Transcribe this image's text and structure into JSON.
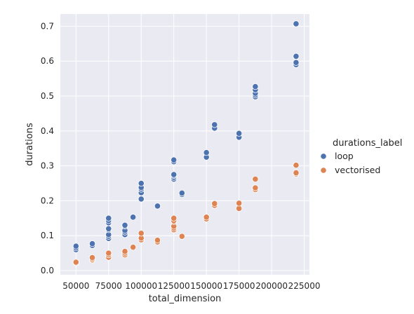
{
  "chart_data": {
    "type": "scatter",
    "xlabel": "total_dimension",
    "ylabel": "durations",
    "xlim": [
      38000,
      229000
    ],
    "ylim": [
      -0.012,
      0.735
    ],
    "xticks": [
      50000,
      75000,
      100000,
      125000,
      150000,
      175000,
      200000,
      225000
    ],
    "xtick_labels": [
      "50000",
      "75000",
      "100000",
      "125000",
      "150000",
      "175000",
      "200000",
      "225000"
    ],
    "yticks": [
      0.0,
      0.1,
      0.2,
      0.3,
      0.4,
      0.5,
      0.6,
      0.7
    ],
    "ytick_labels": [
      "0.0",
      "0.1",
      "0.2",
      "0.3",
      "0.4",
      "0.5",
      "0.6",
      "0.7"
    ],
    "grid": true,
    "background": "#eaeaf2",
    "legend": {
      "title": "durations_label",
      "placement": "right",
      "entries": [
        "loop",
        "vectorised"
      ]
    },
    "series": [
      {
        "name": "loop",
        "color": "#4c72b0",
        "points": [
          [
            50000,
            0.06
          ],
          [
            50000,
            0.065
          ],
          [
            50000,
            0.07
          ],
          [
            62500,
            0.072
          ],
          [
            62500,
            0.077
          ],
          [
            75000,
            0.092
          ],
          [
            75000,
            0.098
          ],
          [
            75000,
            0.103
          ],
          [
            75000,
            0.117
          ],
          [
            75000,
            0.12
          ],
          [
            75000,
            0.137
          ],
          [
            75000,
            0.143
          ],
          [
            75000,
            0.15
          ],
          [
            87500,
            0.103
          ],
          [
            87500,
            0.11
          ],
          [
            87500,
            0.115
          ],
          [
            87500,
            0.127
          ],
          [
            87500,
            0.13
          ],
          [
            93750,
            0.153
          ],
          [
            100000,
            0.205
          ],
          [
            100000,
            0.223
          ],
          [
            100000,
            0.233
          ],
          [
            100000,
            0.238
          ],
          [
            100000,
            0.25
          ],
          [
            112500,
            0.185
          ],
          [
            125000,
            0.262
          ],
          [
            125000,
            0.267
          ],
          [
            125000,
            0.272
          ],
          [
            125000,
            0.275
          ],
          [
            125000,
            0.312
          ],
          [
            125000,
            0.317
          ],
          [
            131250,
            0.218
          ],
          [
            131250,
            0.222
          ],
          [
            150000,
            0.325
          ],
          [
            150000,
            0.338
          ],
          [
            156250,
            0.408
          ],
          [
            156250,
            0.418
          ],
          [
            175000,
            0.382
          ],
          [
            175000,
            0.393
          ],
          [
            187500,
            0.498
          ],
          [
            187500,
            0.503
          ],
          [
            187500,
            0.508
          ],
          [
            187500,
            0.518
          ],
          [
            187500,
            0.527
          ],
          [
            218750,
            0.59
          ],
          [
            218750,
            0.596
          ],
          [
            218750,
            0.614
          ],
          [
            218750,
            0.707
          ]
        ]
      },
      {
        "name": "vectorised",
        "color": "#dd8452",
        "points": [
          [
            50000,
            0.022
          ],
          [
            50000,
            0.024
          ],
          [
            62500,
            0.03
          ],
          [
            62500,
            0.033
          ],
          [
            62500,
            0.037
          ],
          [
            75000,
            0.038
          ],
          [
            75000,
            0.045
          ],
          [
            75000,
            0.05
          ],
          [
            87500,
            0.045
          ],
          [
            87500,
            0.05
          ],
          [
            87500,
            0.055
          ],
          [
            93750,
            0.067
          ],
          [
            100000,
            0.088
          ],
          [
            100000,
            0.093
          ],
          [
            100000,
            0.107
          ],
          [
            112500,
            0.082
          ],
          [
            112500,
            0.087
          ],
          [
            125000,
            0.117
          ],
          [
            125000,
            0.122
          ],
          [
            125000,
            0.127
          ],
          [
            125000,
            0.14
          ],
          [
            125000,
            0.143
          ],
          [
            125000,
            0.15
          ],
          [
            131250,
            0.098
          ],
          [
            150000,
            0.148
          ],
          [
            150000,
            0.153
          ],
          [
            156250,
            0.187
          ],
          [
            156250,
            0.192
          ],
          [
            175000,
            0.178
          ],
          [
            175000,
            0.193
          ],
          [
            187500,
            0.232
          ],
          [
            187500,
            0.237
          ],
          [
            187500,
            0.262
          ],
          [
            218750,
            0.277
          ],
          [
            218750,
            0.28
          ],
          [
            218750,
            0.302
          ]
        ]
      }
    ]
  }
}
